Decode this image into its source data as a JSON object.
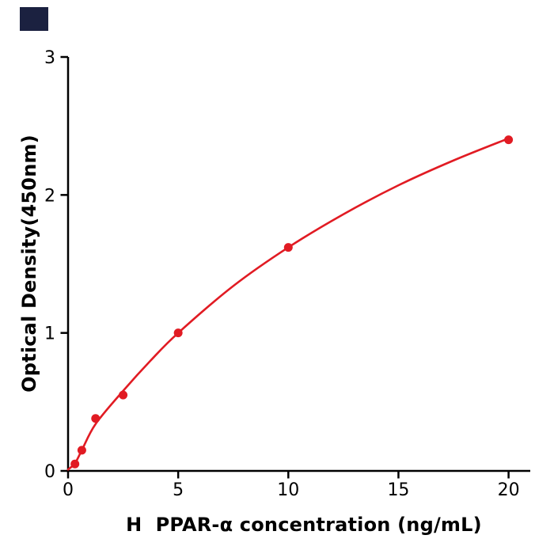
{
  "figure": {
    "background_color": "#ffffff",
    "corner_mark_color": "#1b2140",
    "axis_color": "#000000",
    "accent_color": "#e11b23"
  },
  "chart_data": {
    "type": "scatter",
    "title": "",
    "xlabel": "H  PPAR-α concentration (ng/mL)",
    "ylabel": "Optical Density(450nm)",
    "xlim": [
      0,
      21
    ],
    "ylim": [
      0,
      3
    ],
    "x_ticks": [
      0,
      5,
      10,
      15,
      20
    ],
    "y_ticks": [
      0,
      1,
      2,
      3
    ],
    "grid": false,
    "legend": "none",
    "series": [
      {
        "name": "standard-points",
        "marker": "circle",
        "color": "#e11b23",
        "x": [
          0.3125,
          0.625,
          1.25,
          2.5,
          5,
          10,
          20
        ],
        "y": [
          0.05,
          0.15,
          0.38,
          0.55,
          1.0,
          1.62,
          2.4
        ]
      }
    ],
    "fit_curve": {
      "name": "fitted-standard-curve",
      "color": "#e11b23",
      "x": [
        0,
        0.3125,
        0.625,
        1.25,
        2.5,
        3.75,
        5,
        7.5,
        10,
        12.5,
        15,
        17.5,
        20
      ],
      "y": [
        0.01,
        0.055,
        0.15,
        0.34,
        0.58,
        0.8,
        1.0,
        1.34,
        1.62,
        1.86,
        2.07,
        2.25,
        2.41
      ]
    }
  }
}
